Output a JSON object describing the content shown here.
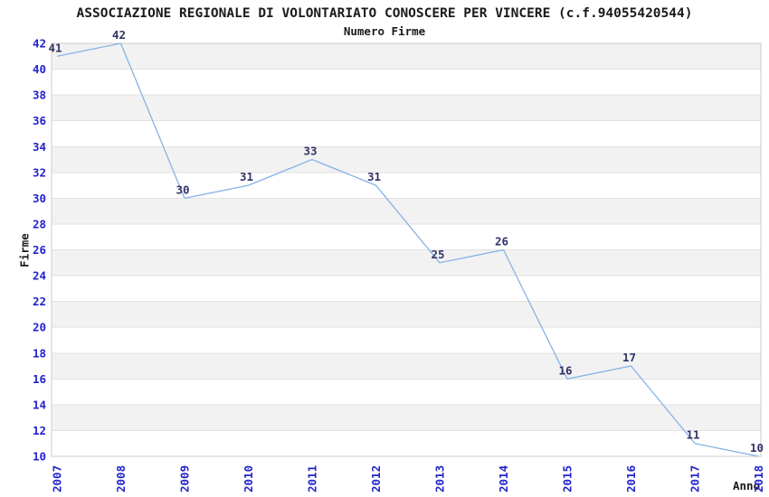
{
  "chart_data": {
    "type": "line",
    "title": "ASSOCIAZIONE REGIONALE DI VOLONTARIATO CONOSCERE PER VINCERE (c.f.94055420544)",
    "subtitle": "Numero Firme",
    "xlabel": "Anno",
    "ylabel": "Firme",
    "categories": [
      "2007",
      "2008",
      "2009",
      "2010",
      "2011",
      "2012",
      "2013",
      "2014",
      "2015",
      "2016",
      "2017",
      "2018"
    ],
    "values": [
      41,
      42,
      30,
      31,
      33,
      31,
      25,
      26,
      16,
      17,
      11,
      10
    ],
    "ylim": [
      10,
      42
    ],
    "ytick_step": 2,
    "grid": "horizontal-bands-alternating",
    "legend_position": "none",
    "markers": "none",
    "colors": {
      "line": "#85B3E6",
      "tick_label": "#2222CC",
      "point_label": "#333366",
      "band_fill": "#F2F2F2",
      "grid_line": "#E2E2E2",
      "axis_border": "#CCCCCC",
      "text": "#1A1A1A",
      "background": "#FFFFFF"
    }
  }
}
